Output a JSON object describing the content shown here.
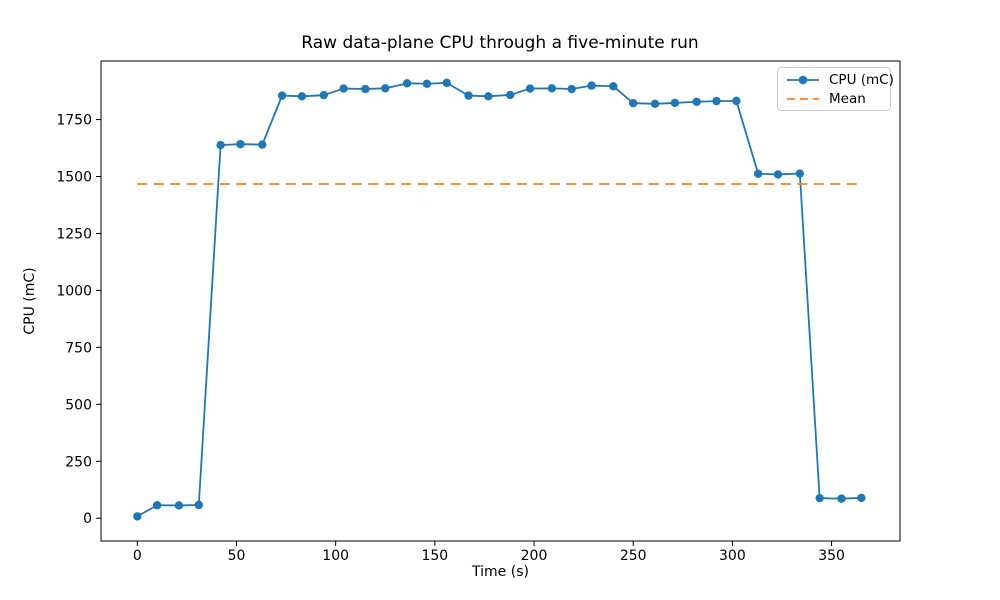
{
  "figure": {
    "title": "Raw data-plane CPU through a five-minute run",
    "background_color": "#ffffff",
    "axes_color": "#000000"
  },
  "chart_data": {
    "type": "line",
    "title": "Raw data-plane CPU through a five-minute run",
    "xlabel": "Time (s)",
    "ylabel": "CPU (mC)",
    "xlim": [
      -18.3,
      384.5
    ],
    "ylim": [
      -100,
      2007
    ],
    "x_ticks": [
      0,
      50,
      100,
      150,
      200,
      250,
      300,
      350
    ],
    "y_ticks": [
      0,
      250,
      500,
      750,
      1000,
      1250,
      1500,
      1750
    ],
    "grid": false,
    "legend_position": "upper right",
    "series": [
      {
        "name": "CPU (mC)",
        "color": "#1f77b4",
        "style": "solid-line-circle-markers",
        "x": [
          0,
          10,
          21,
          31,
          42,
          52,
          63,
          73,
          83,
          94,
          104,
          115,
          125,
          136,
          146,
          156,
          167,
          177,
          188,
          198,
          209,
          219,
          229,
          240,
          250,
          261,
          271,
          282,
          292,
          302,
          313,
          323,
          334,
          344,
          355,
          365
        ],
        "y": [
          8,
          57,
          56,
          58,
          1638,
          1642,
          1640,
          1855,
          1852,
          1857,
          1886,
          1884,
          1887,
          1909,
          1907,
          1911,
          1855,
          1852,
          1858,
          1886,
          1887,
          1884,
          1899,
          1896,
          1822,
          1819,
          1823,
          1828,
          1831,
          1832,
          1512,
          1509,
          1513,
          88,
          86,
          89
        ]
      },
      {
        "name": "Mean",
        "color": "#ff7f0e",
        "style": "dashed-horizontal",
        "mean": 1467.1,
        "x_span": [
          0,
          365
        ]
      }
    ]
  }
}
